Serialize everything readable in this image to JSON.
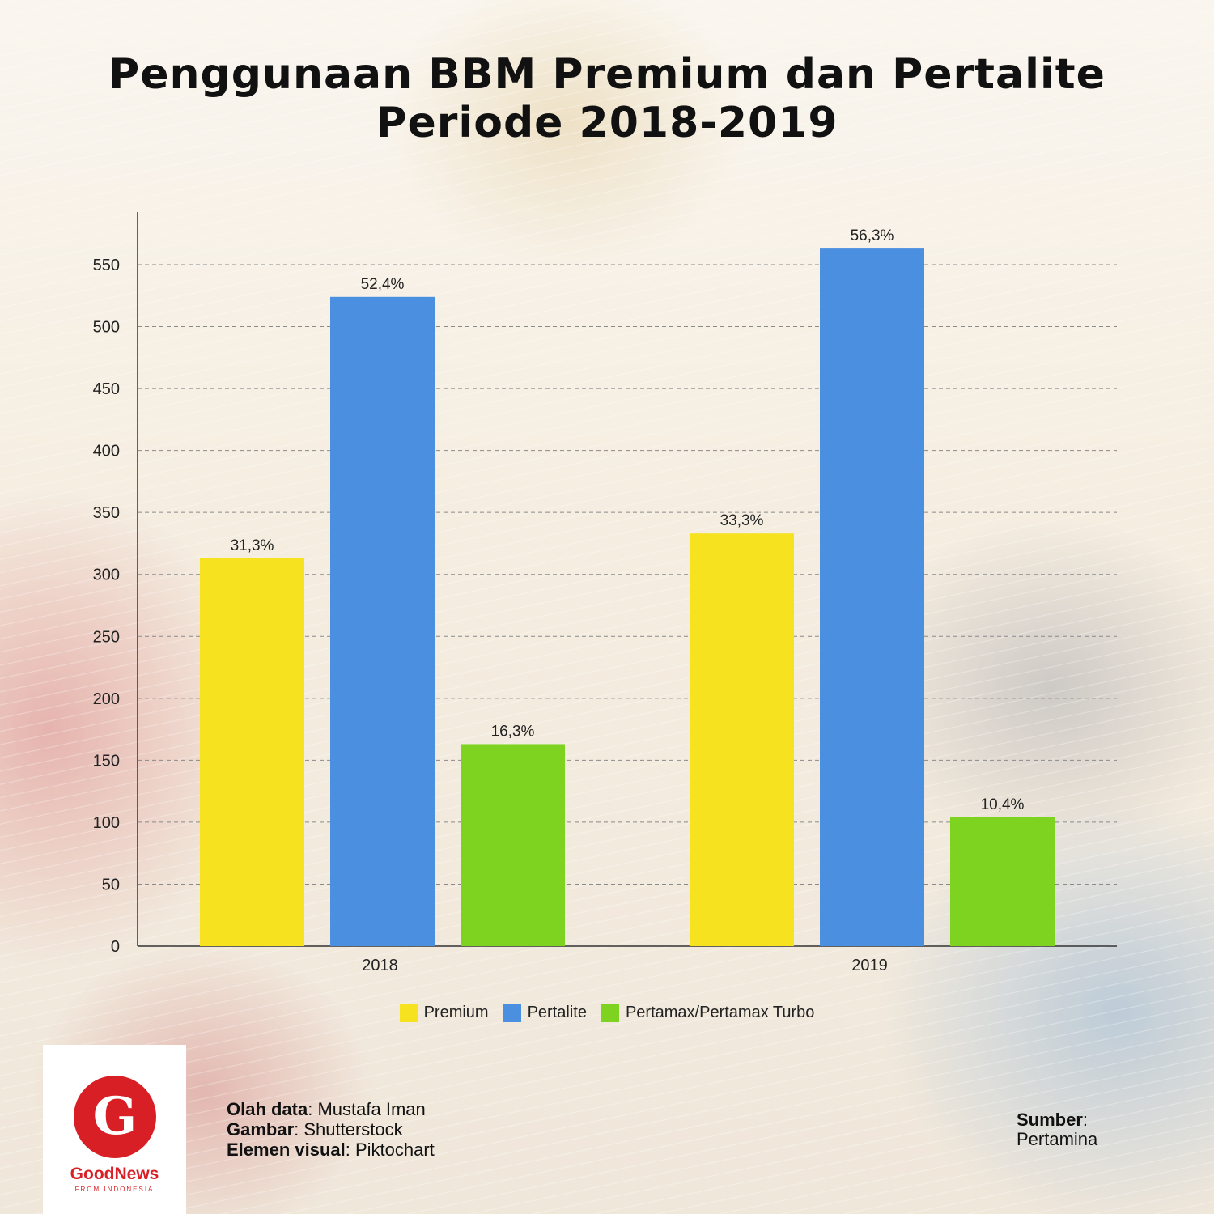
{
  "title": {
    "line1": "Penggunaan BBM Premium dan Pertalite",
    "line2": "Periode 2018-2019"
  },
  "chart_data": {
    "type": "bar",
    "categories": [
      "2018",
      "2019"
    ],
    "series": [
      {
        "name": "Premium",
        "color": "#f6e21f",
        "values": [
          313,
          333
        ],
        "labels": [
          "31,3%",
          "33,3%"
        ]
      },
      {
        "name": "Pertalite",
        "color": "#4a8fe0",
        "values": [
          524,
          563
        ],
        "labels": [
          "52,4%",
          "56,3%"
        ]
      },
      {
        "name": "Pertamax/Pertamax Turbo",
        "color": "#7ed321",
        "values": [
          163,
          104
        ],
        "labels": [
          "16,3%",
          "10,4%"
        ]
      }
    ],
    "ylim": [
      0,
      550
    ],
    "yticks": [
      "0",
      "50",
      "100",
      "150",
      "200",
      "250",
      "300",
      "350",
      "400",
      "450",
      "500",
      "550"
    ],
    "grid": true,
    "legend": "bottom"
  },
  "credits": {
    "data_label": "Olah data",
    "data_value": ": Mustafa Iman",
    "image_label": "Gambar",
    "image_value": ": Shutterstock",
    "visual_label": "Elemen visual",
    "visual_value": ": Piktochart"
  },
  "source": {
    "label": "Sumber",
    "colon": ":",
    "value": "Pertamina"
  },
  "logo": {
    "name": "GoodNews",
    "sub": "FROM INDONESIA",
    "color": "#d91f26"
  }
}
